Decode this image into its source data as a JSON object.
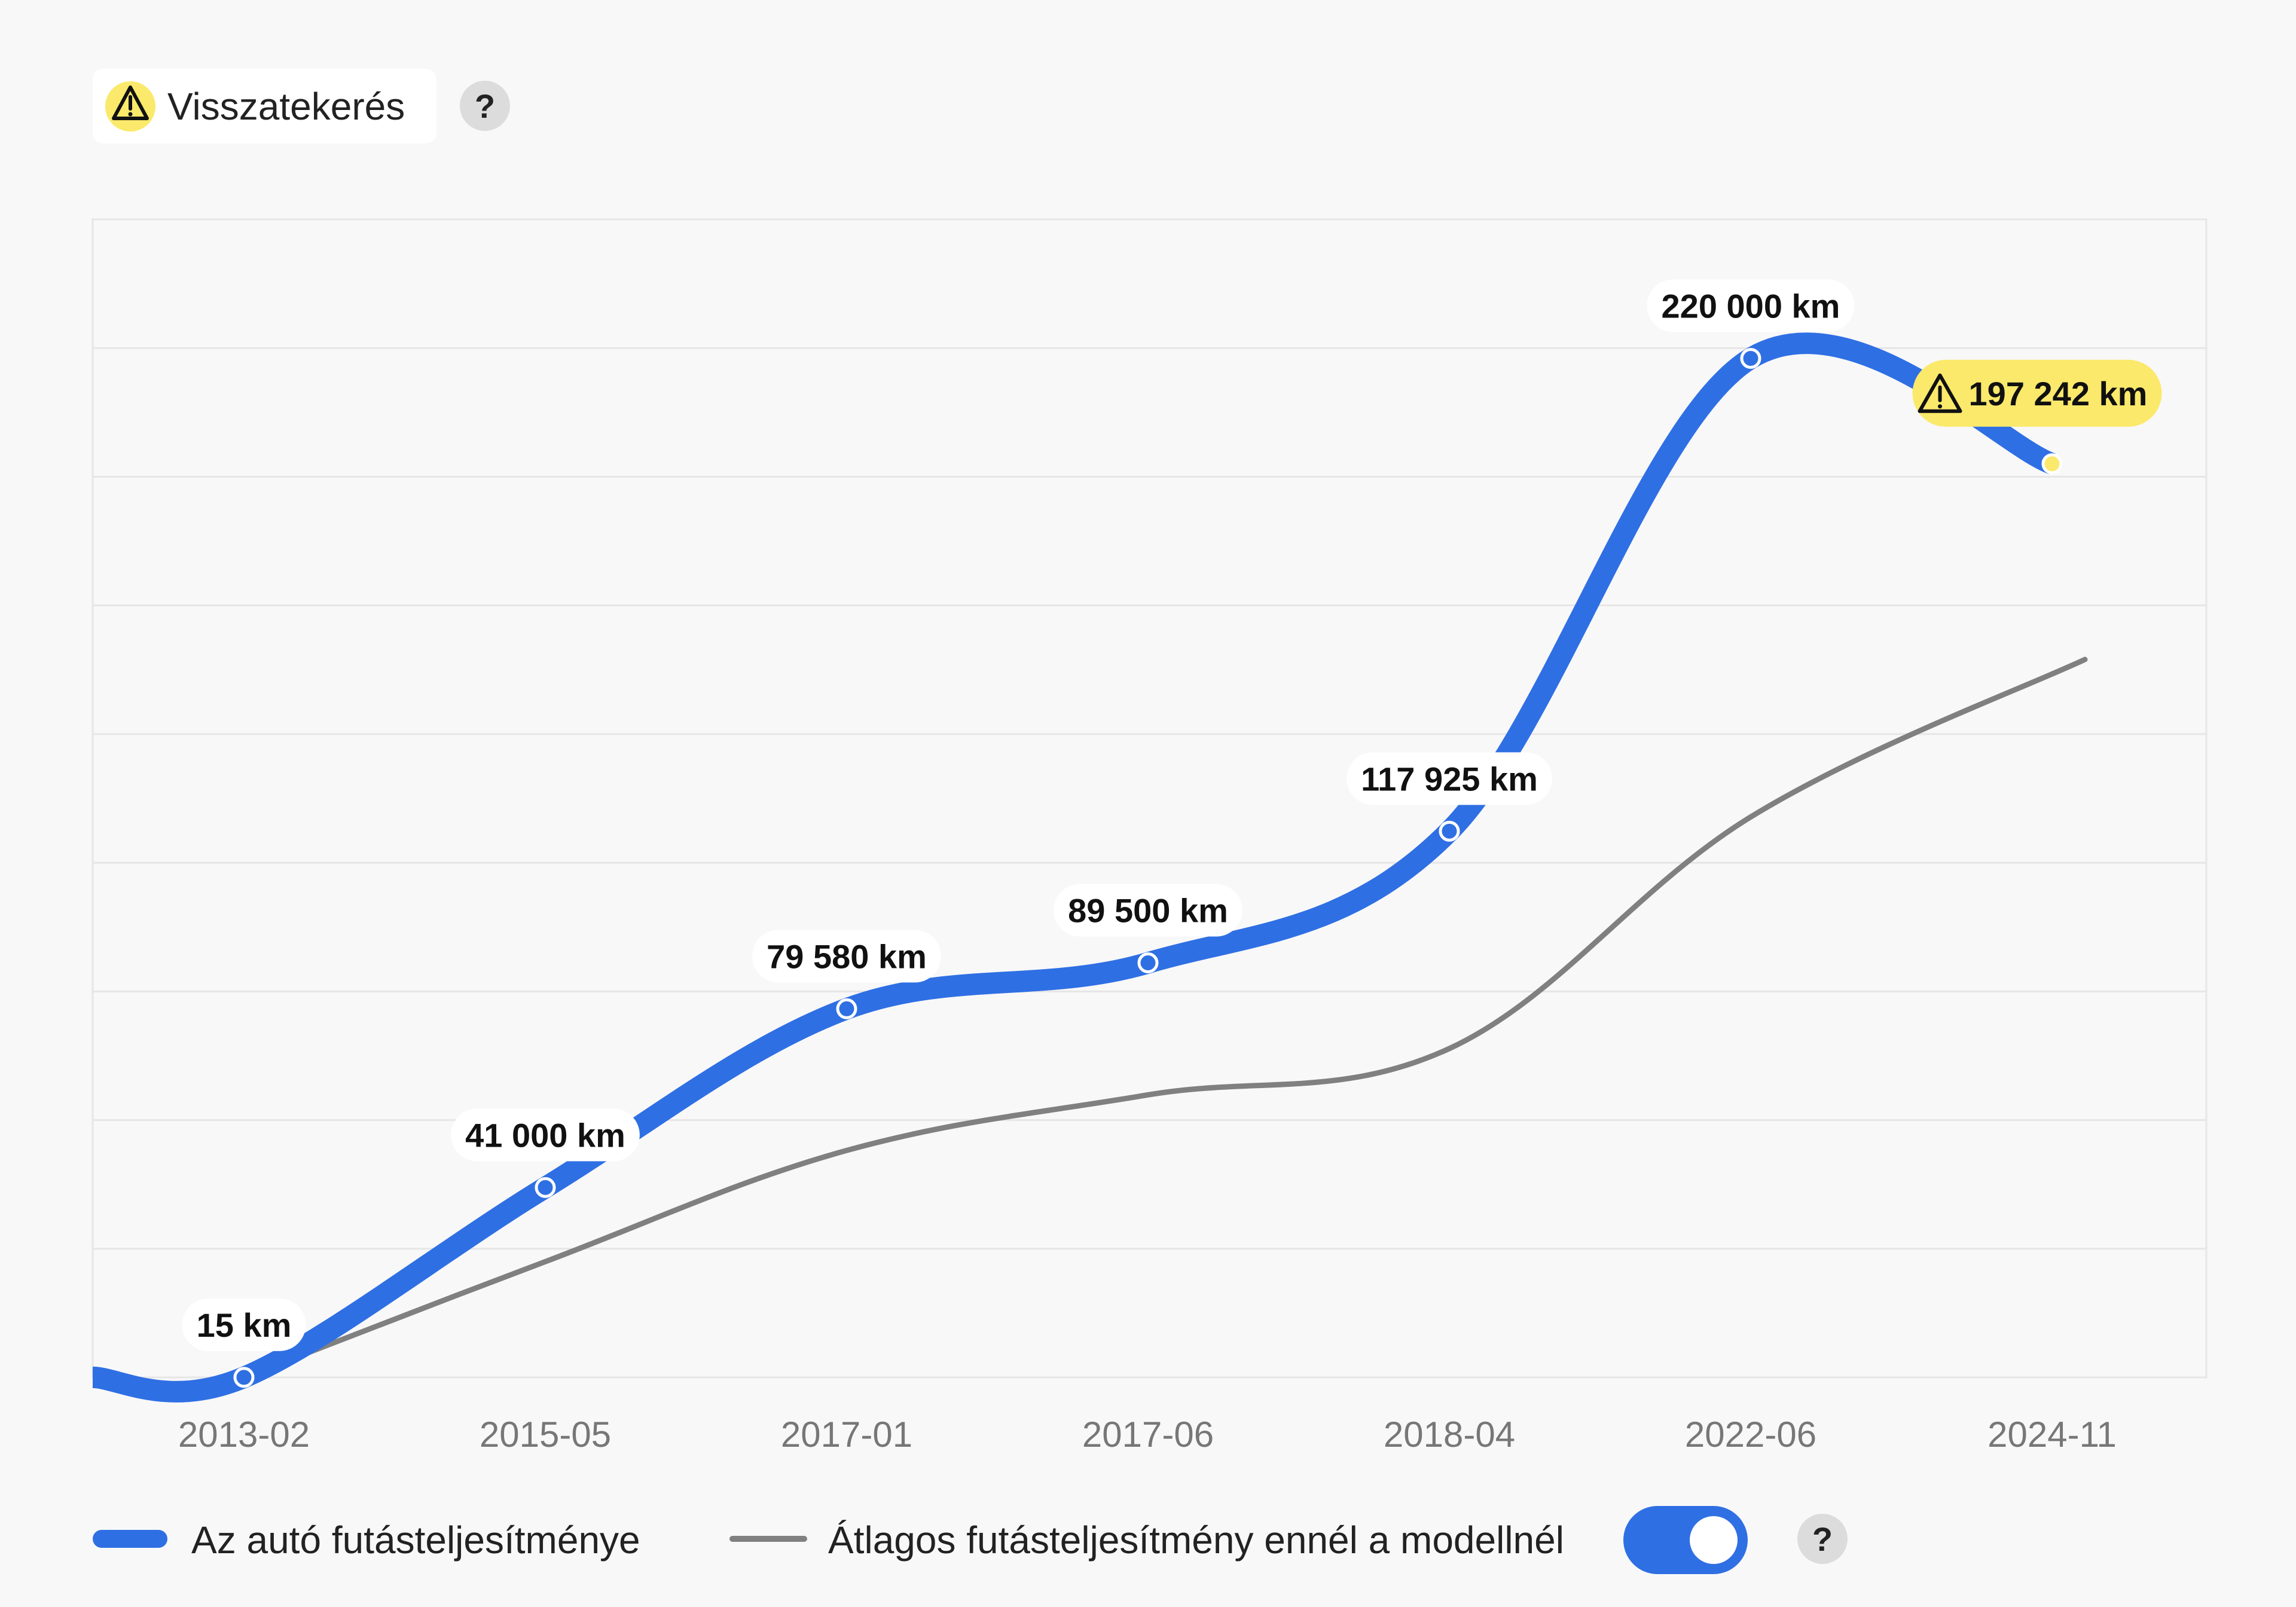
{
  "header": {
    "rollback_label": "Visszatekerés",
    "warning_icon": "warning-triangle-icon",
    "help_glyph": "?"
  },
  "chart_data": {
    "type": "line",
    "x": [
      "2013-02",
      "2015-05",
      "2017-01",
      "2017-06",
      "2018-04",
      "2022-06",
      "2024-11"
    ],
    "ylim": [
      0,
      250000
    ],
    "grid": true,
    "legend_position": "bottom",
    "series": [
      {
        "name": "Az autó futásteljesítménye",
        "values": [
          15,
          41000,
          79580,
          89500,
          117925,
          220000,
          197242
        ],
        "labels": [
          "15 km",
          "41 000 km",
          "79 580 km",
          "89 500 km",
          "117 925 km",
          "220 000 km",
          "197 242 km"
        ],
        "color": "#2f6fe4",
        "flagged_index": 6,
        "flag_color": "#fbe96b"
      },
      {
        "name": "Átlagos futásteljesítmény ennél a modellnél",
        "values": [
          0,
          25000,
          49000,
          61000,
          71000,
          121000,
          155000
        ],
        "color": "#808080"
      }
    ]
  },
  "legend": {
    "car_label": "Az autó futásteljesítménye",
    "avg_label": "Átlagos futásteljesítmény ennél a modellnél",
    "toggle_on": true,
    "help_glyph": "?"
  },
  "colors": {
    "background": "#f8f8f8",
    "accent": "#2f6fe4",
    "warning": "#fbe96b",
    "grid": "#e6e6e6"
  }
}
